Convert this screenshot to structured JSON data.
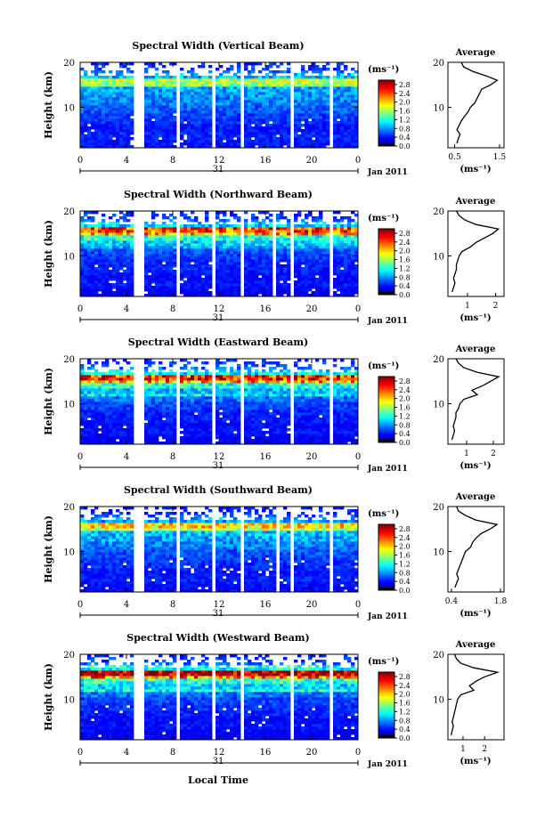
{
  "figure": {
    "xaxis_title": "Local Time",
    "day_label": "31",
    "month_label": "Jan 2011",
    "y_label": "Height (km)",
    "colorbar_unit": "(ms⁻¹)",
    "avg_title": "Average",
    "avg_xlabel": "(ms⁻¹)"
  },
  "chart_data": [
    {
      "type": "heatmap",
      "title": "Spectral Width (Vertical Beam)",
      "xlabel": "Local Time",
      "ylabel": "Height (km)",
      "xticks": [
        "0",
        "4",
        "8",
        "12",
        "16",
        "20",
        "0"
      ],
      "xlim": [
        0,
        24
      ],
      "yticks": [
        "20",
        "10"
      ],
      "ylim": [
        1,
        20
      ],
      "colorbar": {
        "ticks": [
          "2.8",
          "2.4",
          "2.0",
          "1.6",
          "1.2",
          "0.8",
          "0.4",
          "0.0"
        ],
        "range": [
          0,
          3.0
        ]
      },
      "data_gaps_hours": [
        [
          4.7,
          5.5
        ],
        [
          8.3,
          8.7
        ],
        [
          11.4,
          11.8
        ],
        [
          13.8,
          14.2
        ],
        [
          18.1,
          18.5
        ],
        [
          21.5,
          21.9
        ]
      ],
      "average_profile": {
        "xticks": [
          "0.5",
          "1.5"
        ],
        "xlim": [
          0.35,
          1.6
        ],
        "heights_km": [
          2,
          3,
          4,
          5,
          6,
          7,
          8,
          9,
          10,
          11,
          12,
          13,
          14,
          15,
          16,
          17,
          18,
          19,
          20
        ],
        "values": [
          0.55,
          0.58,
          0.62,
          0.55,
          0.6,
          0.65,
          0.72,
          0.8,
          0.85,
          0.95,
          1.0,
          1.05,
          1.1,
          1.3,
          1.45,
          1.2,
          0.9,
          0.7,
          0.65
        ]
      }
    },
    {
      "type": "heatmap",
      "title": "Spectral Width (Northward Beam)",
      "xlabel": "Local Time",
      "ylabel": "Height (km)",
      "xticks": [
        "0",
        "4",
        "8",
        "12",
        "16",
        "20",
        "0"
      ],
      "xlim": [
        0,
        24
      ],
      "yticks": [
        "20",
        "10"
      ],
      "ylim": [
        1,
        20
      ],
      "colorbar": {
        "ticks": [
          "2.8",
          "2.4",
          "2.0",
          "1.6",
          "1.2",
          "0.8",
          "0.4",
          "0.0"
        ],
        "range": [
          0,
          3.0
        ]
      },
      "data_gaps_hours": [
        [
          4.7,
          5.5
        ],
        [
          8.4,
          8.7
        ],
        [
          11.5,
          11.8
        ],
        [
          13.8,
          14.1
        ],
        [
          16.6,
          16.9
        ],
        [
          18.1,
          18.4
        ],
        [
          21.6,
          21.9
        ]
      ],
      "average_profile": {
        "xticks": [
          "1",
          "2"
        ],
        "xlim": [
          0.3,
          2.3
        ],
        "heights_km": [
          2,
          3,
          4,
          5,
          6,
          7,
          8,
          9,
          10,
          11,
          12,
          13,
          14,
          15,
          16,
          17,
          18,
          19,
          20
        ],
        "values": [
          0.45,
          0.5,
          0.55,
          0.5,
          0.55,
          0.6,
          0.6,
          0.65,
          0.7,
          0.8,
          1.1,
          1.3,
          1.6,
          1.9,
          2.1,
          1.3,
          0.9,
          0.7,
          0.6
        ]
      }
    },
    {
      "type": "heatmap",
      "title": "Spectral Width (Eastward Beam)",
      "xlabel": "Local Time",
      "ylabel": "Height (km)",
      "xticks": [
        "0",
        "4",
        "8",
        "12",
        "16",
        "20",
        "0"
      ],
      "xlim": [
        0,
        24
      ],
      "yticks": [
        "20",
        "10"
      ],
      "ylim": [
        1,
        20
      ],
      "colorbar": {
        "ticks": [
          "2.8",
          "2.4",
          "2.0",
          "1.6",
          "1.2",
          "0.8",
          "0.4",
          "0.0"
        ],
        "range": [
          0,
          3.0
        ]
      },
      "data_gaps_hours": [
        [
          4.7,
          5.5
        ],
        [
          8.4,
          8.7
        ],
        [
          11.5,
          11.8
        ],
        [
          13.8,
          14.1
        ],
        [
          18.1,
          18.4
        ],
        [
          21.6,
          21.9
        ]
      ],
      "average_profile": {
        "xticks": [
          "1",
          "2"
        ],
        "xlim": [
          0.3,
          2.4
        ],
        "heights_km": [
          2,
          3,
          4,
          5,
          6,
          7,
          8,
          9,
          10,
          11,
          12,
          13,
          14,
          15,
          16,
          17,
          18,
          19,
          20
        ],
        "values": [
          0.45,
          0.5,
          0.55,
          0.5,
          0.55,
          0.6,
          0.6,
          0.7,
          0.75,
          0.9,
          1.4,
          1.2,
          1.6,
          1.9,
          2.2,
          1.4,
          0.9,
          0.7,
          0.6
        ]
      }
    },
    {
      "type": "heatmap",
      "title": "Spectral Width (Southward Beam)",
      "xlabel": "Local Time",
      "ylabel": "Height (km)",
      "xticks": [
        "0",
        "4",
        "8",
        "12",
        "16",
        "20",
        "0"
      ],
      "xlim": [
        0,
        24
      ],
      "yticks": [
        "20",
        "10"
      ],
      "ylim": [
        1,
        20
      ],
      "colorbar": {
        "ticks": [
          "2.8",
          "2.4",
          "2.0",
          "1.6",
          "1.2",
          "0.8",
          "0.4",
          "0.0"
        ],
        "range": [
          0,
          3.0
        ]
      },
      "data_gaps_hours": [
        [
          4.7,
          5.5
        ],
        [
          8.4,
          8.7
        ],
        [
          11.5,
          11.8
        ],
        [
          13.8,
          14.1
        ],
        [
          16.8,
          17.1
        ],
        [
          18.1,
          18.4
        ],
        [
          21.6,
          21.9
        ]
      ],
      "average_profile": {
        "xticks": [
          "0.4",
          "1.8"
        ],
        "xlim": [
          0.3,
          1.9
        ],
        "heights_km": [
          2,
          3,
          4,
          5,
          6,
          7,
          8,
          9,
          10,
          11,
          12,
          13,
          14,
          15,
          16,
          17,
          18,
          19,
          20
        ],
        "values": [
          0.5,
          0.55,
          0.6,
          0.55,
          0.6,
          0.65,
          0.7,
          0.75,
          0.8,
          0.95,
          1.0,
          1.1,
          1.25,
          1.5,
          1.7,
          1.1,
          0.8,
          0.6,
          0.55
        ]
      }
    },
    {
      "type": "heatmap",
      "title": "Spectral Width (Westward Beam)",
      "xlabel": "Local Time",
      "ylabel": "Height (km)",
      "xticks": [
        "0",
        "4",
        "8",
        "12",
        "16",
        "20",
        "0"
      ],
      "xlim": [
        0,
        24
      ],
      "yticks": [
        "20",
        "10"
      ],
      "ylim": [
        1,
        20
      ],
      "colorbar": {
        "ticks": [
          "2.8",
          "2.4",
          "2.0",
          "1.6",
          "1.2",
          "0.8",
          "0.4",
          "0.0"
        ],
        "range": [
          0,
          3.0
        ]
      },
      "data_gaps_hours": [
        [
          4.7,
          5.5
        ],
        [
          8.4,
          8.7
        ],
        [
          11.5,
          11.8
        ],
        [
          13.8,
          14.1
        ],
        [
          18.1,
          18.4
        ],
        [
          21.6,
          21.9
        ]
      ],
      "average_profile": {
        "xticks": [
          "1",
          "2"
        ],
        "xlim": [
          0.3,
          2.9
        ],
        "heights_km": [
          2,
          3,
          4,
          5,
          6,
          7,
          8,
          9,
          10,
          11,
          12,
          13,
          14,
          15,
          16,
          17,
          18,
          19,
          20
        ],
        "values": [
          0.45,
          0.5,
          0.55,
          0.5,
          0.55,
          0.6,
          0.65,
          0.7,
          0.75,
          0.9,
          1.5,
          1.3,
          1.6,
          2.0,
          2.6,
          1.5,
          0.9,
          0.7,
          0.6
        ]
      }
    }
  ]
}
